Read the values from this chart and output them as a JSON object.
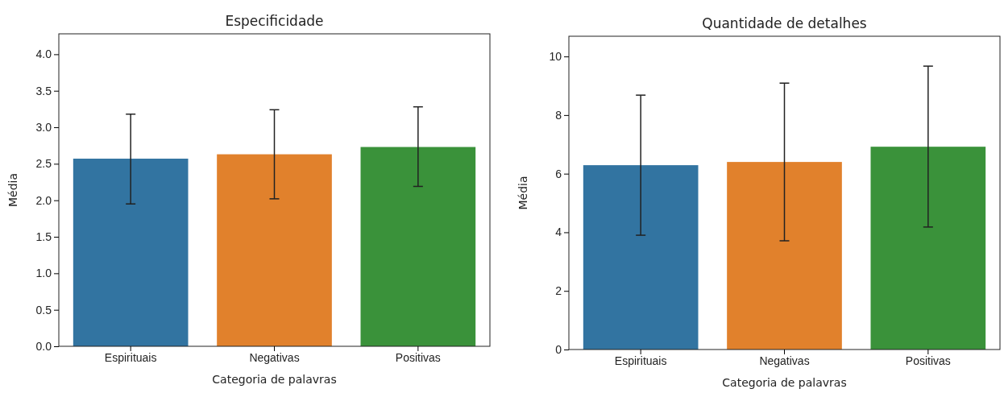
{
  "chart_data": [
    {
      "type": "bar",
      "title": "Especificidade",
      "xlabel": "Categoria de palavras",
      "ylabel": "Média",
      "categories": [
        "Espirituais",
        "Negativas",
        "Positivas"
      ],
      "values": [
        2.57,
        2.63,
        2.73
      ],
      "colors": [
        "#3274a1",
        "#e1812c",
        "#3a923a"
      ],
      "errors": [
        [
          1.95,
          3.18
        ],
        [
          2.02,
          3.24
        ],
        [
          2.19,
          3.28
        ]
      ],
      "ylim": [
        0,
        4.28
      ],
      "yticks": [
        {
          "value": 0,
          "label": "0.0"
        },
        {
          "value": 0.5,
          "label": "0.5"
        },
        {
          "value": 1,
          "label": "1.0"
        },
        {
          "value": 1.5,
          "label": "1.5"
        },
        {
          "value": 2,
          "label": "2.0"
        },
        {
          "value": 2.5,
          "label": "2.5"
        },
        {
          "value": 3,
          "label": "3.0"
        },
        {
          "value": 3.5,
          "label": "3.5"
        },
        {
          "value": 4,
          "label": "4.0"
        }
      ]
    },
    {
      "type": "bar",
      "title": "Quantidade de detalhes",
      "xlabel": "Categoria de palavras",
      "ylabel": "Média",
      "categories": [
        "Espirituais",
        "Negativas",
        "Positivas"
      ],
      "values": [
        6.29,
        6.4,
        6.92
      ],
      "colors": [
        "#3274a1",
        "#e1812c",
        "#3a923a"
      ],
      "errors": [
        [
          3.9,
          8.68
        ],
        [
          3.71,
          9.09
        ],
        [
          4.18,
          9.67
        ]
      ],
      "ylim": [
        0,
        10.69
      ],
      "yticks": [
        0,
        2,
        4,
        6,
        8,
        10
      ]
    }
  ]
}
